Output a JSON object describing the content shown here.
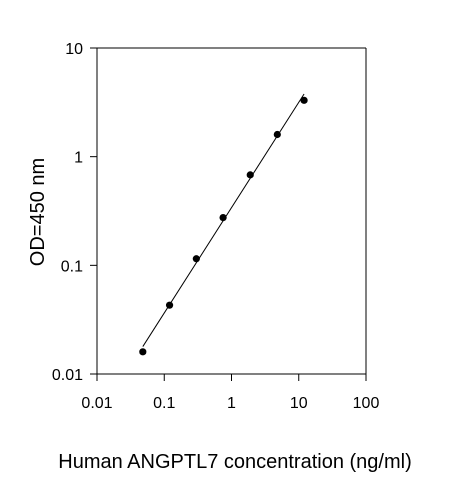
{
  "chart_data": {
    "type": "scatter",
    "x_scale": "log",
    "y_scale": "log",
    "xlim": [
      0.01,
      100
    ],
    "ylim": [
      0.01,
      10
    ],
    "xlabel": "Human ANGPTL7 concentration (ng/ml)",
    "ylabel": "OD=450 nm",
    "x_ticks": [
      0.01,
      0.1,
      1,
      10,
      100
    ],
    "x_tick_labels": [
      "0.01",
      "0.1",
      "1",
      "10",
      "100"
    ],
    "y_ticks": [
      0.01,
      0.1,
      1,
      10
    ],
    "y_tick_labels": [
      "0.01",
      "0.1",
      "1",
      "10"
    ],
    "grid": false,
    "legend": "none",
    "fit_line": true,
    "series": [
      {
        "x": [
          0.048,
          0.12,
          0.3,
          0.75,
          1.9,
          4.8,
          12
        ],
        "y": [
          0.016,
          0.043,
          0.115,
          0.275,
          0.68,
          1.6,
          3.3
        ]
      }
    ],
    "colors": {
      "points": "#000000",
      "line": "#000000",
      "axis": "#000000"
    }
  }
}
